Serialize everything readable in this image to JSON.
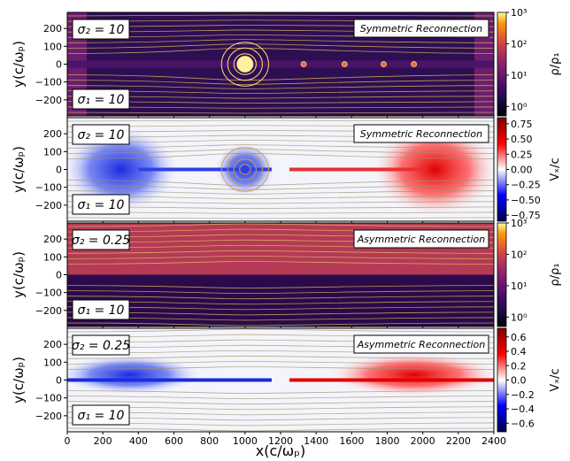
{
  "figure": {
    "xlabel": "x(c/ωₚ)",
    "x_ticks": [
      0,
      200,
      400,
      600,
      800,
      1000,
      1200,
      1400,
      1600,
      1800,
      2000,
      2200,
      2400
    ],
    "xlim": [
      0,
      2400
    ]
  },
  "chart_data": [
    {
      "type": "heatmap",
      "title": "Symmetric Reconnection",
      "quantity": "density",
      "colormap": "inferno",
      "ylabel": "y(c/ωₚ)",
      "ylim": [
        -290,
        290
      ],
      "y_ticks": [
        200,
        100,
        0,
        -100,
        -200
      ],
      "sigma_top": "σ₂ = 10",
      "sigma_bottom": "σ₁ = 10",
      "colorbar": {
        "label": "ρ/ρ₁",
        "scale": "log",
        "ticks": [
          "10⁰",
          "10¹",
          "10²",
          "10³"
        ],
        "range": [
          0.5,
          1000
        ]
      },
      "plasmoids": [
        {
          "x": 1000,
          "y": 0,
          "size": "large"
        },
        {
          "x": 1330,
          "y": 0,
          "size": "small"
        },
        {
          "x": 1560,
          "y": 0,
          "size": "small"
        },
        {
          "x": 1780,
          "y": 0,
          "size": "small"
        },
        {
          "x": 1950,
          "y": 0,
          "size": "small"
        }
      ]
    },
    {
      "type": "heatmap",
      "title": "Symmetric Reconnection",
      "quantity": "outflow velocity",
      "colormap": "seismic",
      "ylabel": "y(c/ωₚ)",
      "ylim": [
        -290,
        290
      ],
      "y_ticks": [
        200,
        100,
        0,
        -100,
        -200
      ],
      "sigma_top": "σ₂ = 10",
      "sigma_bottom": "σ₁ = 10",
      "colorbar": {
        "label": "Vₓ/c",
        "scale": "linear",
        "ticks": [
          "0.75",
          "0.50",
          "0.25",
          "0.00",
          "−0.25",
          "−0.50",
          "−0.75"
        ],
        "range": [
          -0.85,
          0.85
        ]
      }
    },
    {
      "type": "heatmap",
      "title": "Asymmetric Reconnection",
      "quantity": "density",
      "colormap": "inferno",
      "ylabel": "y(c/ωₚ)",
      "ylim": [
        -290,
        290
      ],
      "y_ticks": [
        200,
        100,
        0,
        -100,
        -200
      ],
      "sigma_top": "σ₂ = 0.25",
      "sigma_bottom": "σ₁ = 10",
      "colorbar": {
        "label": "ρ/ρ₁",
        "scale": "log",
        "ticks": [
          "10⁰",
          "10¹",
          "10²",
          "10³"
        ],
        "range": [
          0.5,
          1000
        ]
      }
    },
    {
      "type": "heatmap",
      "title": "Asymmetric Reconnection",
      "quantity": "outflow velocity",
      "colormap": "seismic",
      "ylabel": "y(c/ωₚ)",
      "ylim": [
        -290,
        290
      ],
      "y_ticks": [
        200,
        100,
        0,
        -100,
        -200
      ],
      "sigma_top": "σ₂ = 0.25",
      "sigma_bottom": "σ₁ = 10",
      "colorbar": {
        "label": "Vₓ/c",
        "scale": "linear",
        "ticks": [
          "0.6",
          "0.4",
          "0.2",
          "0.0",
          "−0.2",
          "−0.4",
          "−0.6"
        ],
        "range": [
          -0.72,
          0.72
        ]
      }
    }
  ]
}
